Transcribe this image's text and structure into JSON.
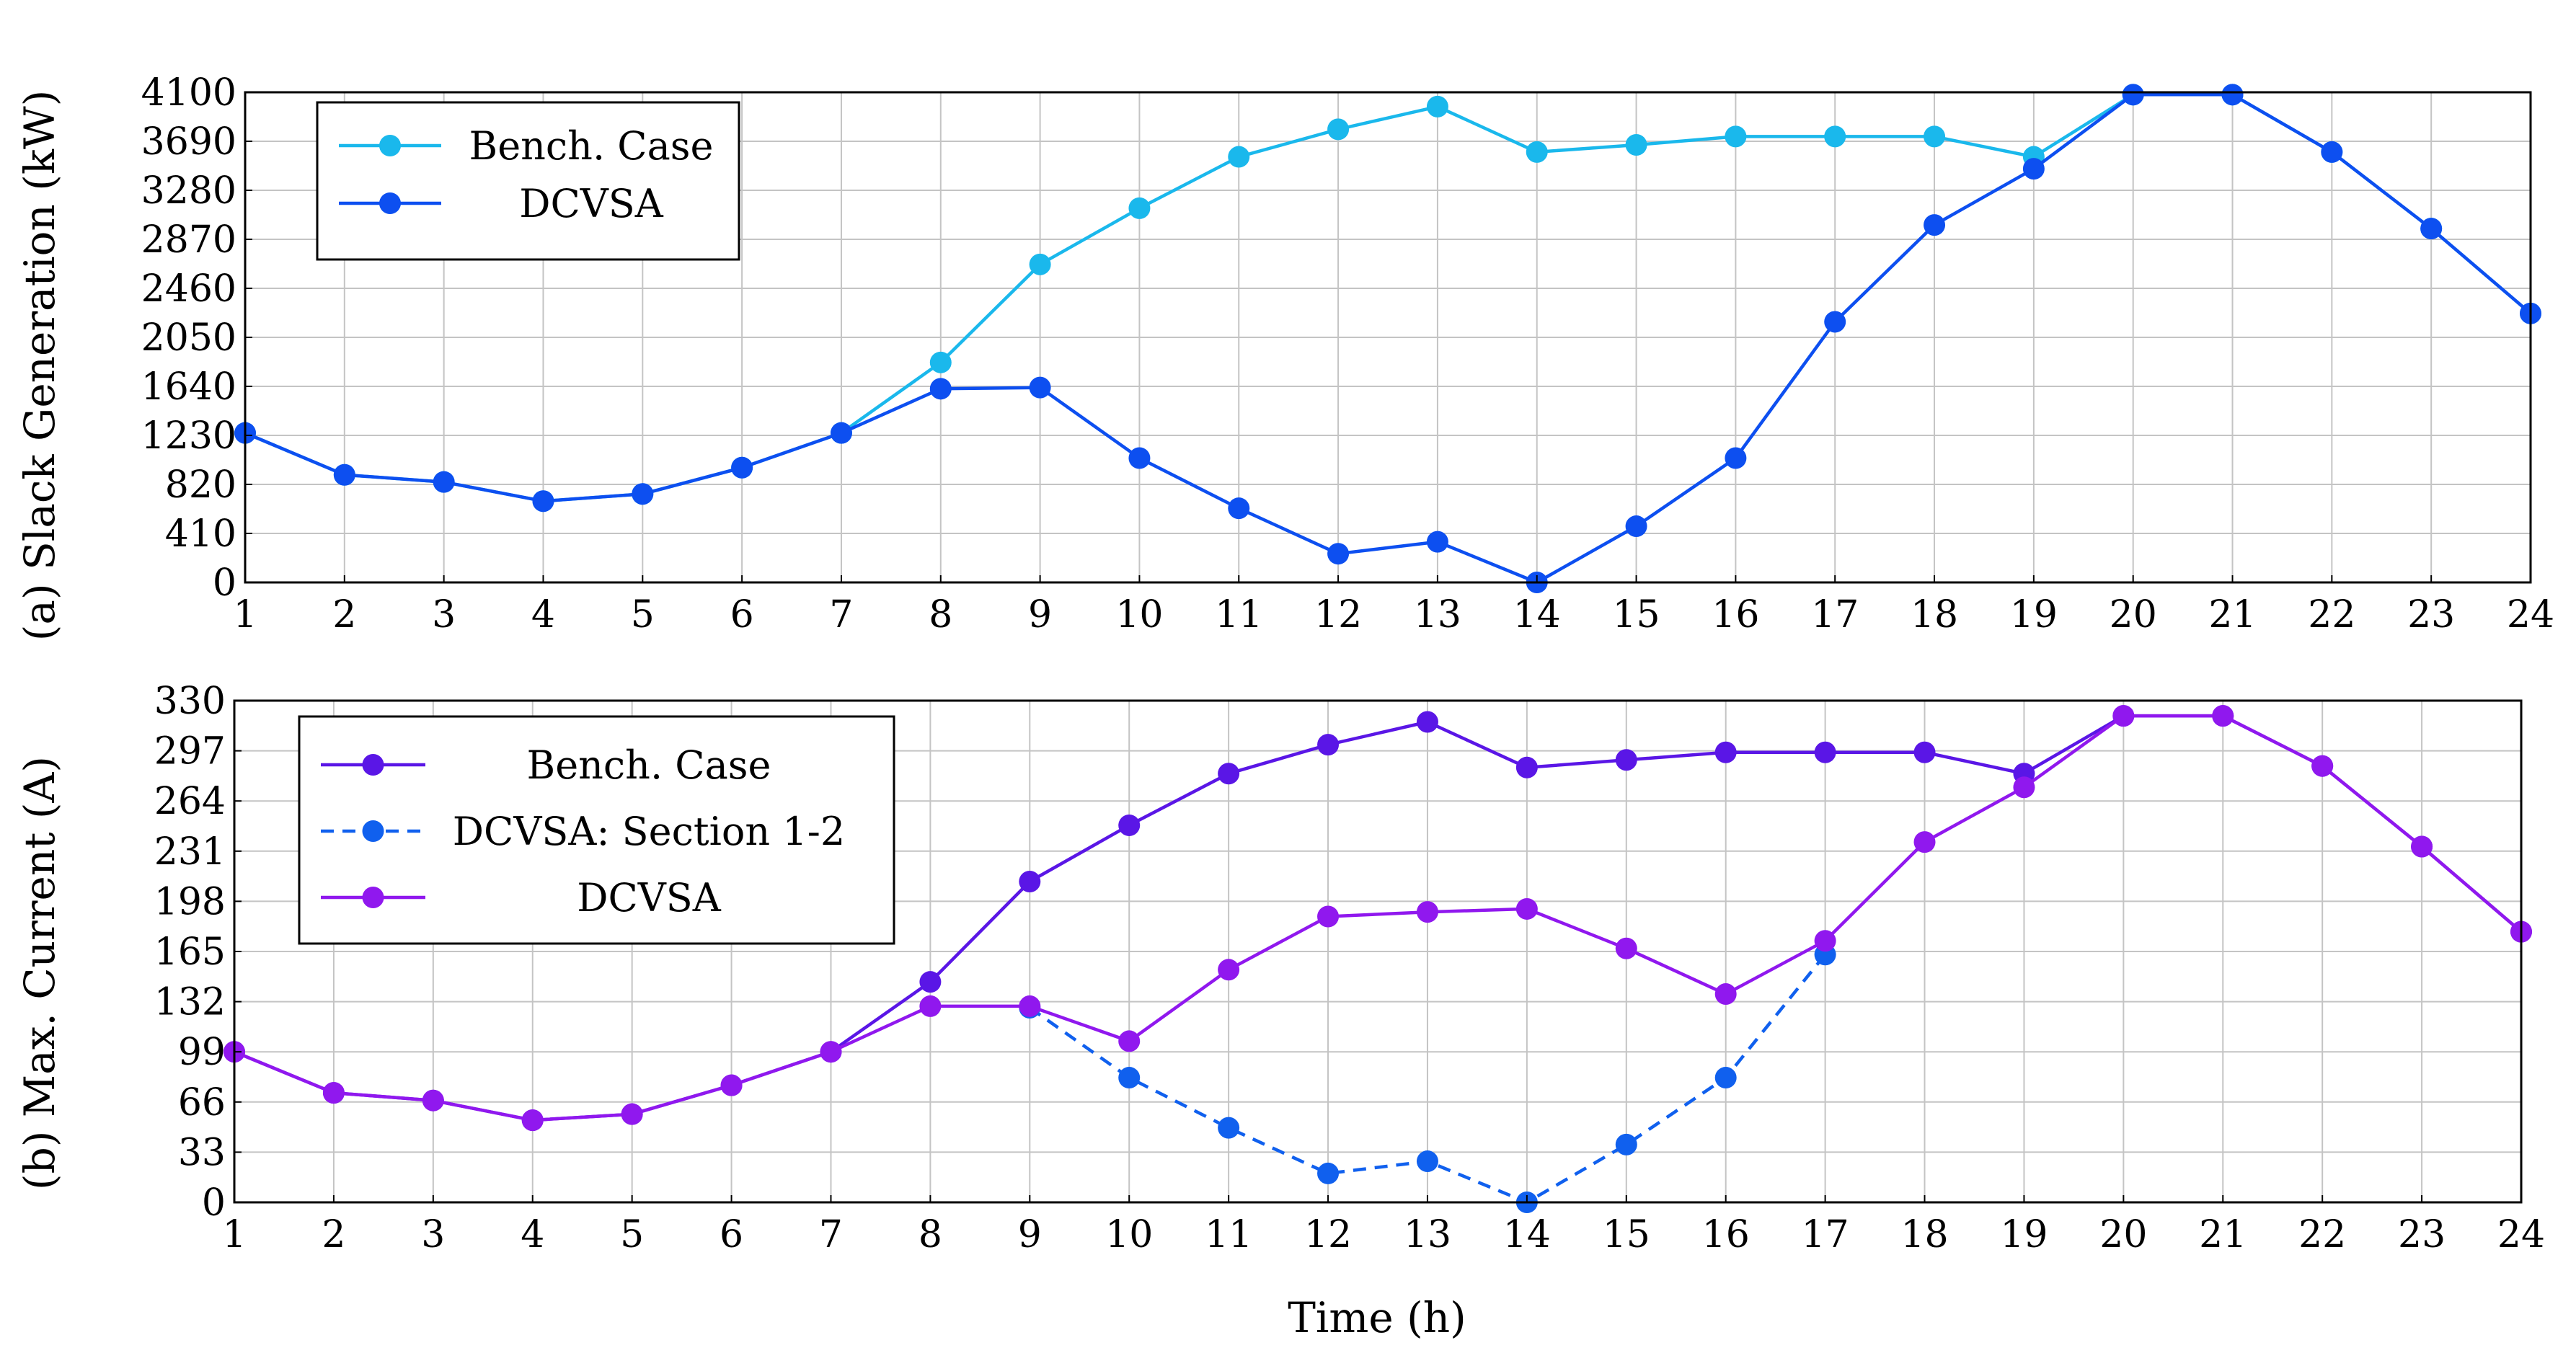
{
  "chart_data": [
    {
      "type": "line",
      "panel": "a",
      "ylabel": "(a) Slack Generation (kW)",
      "xlabel": "",
      "x": [
        1,
        2,
        3,
        4,
        5,
        6,
        7,
        8,
        9,
        10,
        11,
        12,
        13,
        14,
        15,
        16,
        17,
        18,
        19,
        20,
        21,
        22,
        23,
        24
      ],
      "xlim": [
        1,
        24
      ],
      "ylim": [
        0,
        4100
      ],
      "yticks": [
        0,
        410,
        820,
        1230,
        1640,
        2050,
        2460,
        2870,
        3280,
        3690,
        4100
      ],
      "grid": true,
      "legend_position": "top-left",
      "series": [
        {
          "name": "Bench. Case",
          "color": "#1ab8ec",
          "dash": "solid",
          "values": [
            1250,
            900,
            840,
            680,
            740,
            960,
            1250,
            1840,
            2660,
            3130,
            3560,
            3790,
            3980,
            3600,
            3660,
            3730,
            3730,
            3730,
            3560,
            4080,
            4080,
            3600,
            2960,
            2250
          ]
        },
        {
          "name": "DCVSA",
          "color": "#0d4ff0",
          "dash": "solid",
          "values": [
            1250,
            900,
            840,
            680,
            740,
            960,
            1250,
            1620,
            1630,
            1040,
            620,
            240,
            340,
            0,
            470,
            1040,
            2180,
            2990,
            3460,
            4080,
            4080,
            3600,
            2960,
            2250
          ]
        }
      ]
    },
    {
      "type": "line",
      "panel": "b",
      "ylabel": "(b) Max. Current (A)",
      "xlabel": "Time (h)",
      "x": [
        1,
        2,
        3,
        4,
        5,
        6,
        7,
        8,
        9,
        10,
        11,
        12,
        13,
        14,
        15,
        16,
        17,
        18,
        19,
        20,
        21,
        22,
        23,
        24
      ],
      "xlim": [
        1,
        24
      ],
      "ylim": [
        0,
        330
      ],
      "yticks": [
        0,
        33,
        66,
        99,
        132,
        165,
        198,
        231,
        264,
        297,
        330
      ],
      "grid": true,
      "legend_position": "top-left",
      "series": [
        {
          "name": "Bench. Case",
          "color": "#5a16e6",
          "dash": "solid",
          "values": [
            99,
            72,
            67,
            54,
            58,
            77,
            99,
            145,
            211,
            248,
            282,
            301,
            316,
            286,
            291,
            296,
            296,
            296,
            282,
            320,
            320,
            287,
            234,
            178
          ]
        },
        {
          "name": "DCVSA: Section 1-2",
          "color": "#1060ee",
          "dash": "dashed",
          "values": [
            null,
            null,
            null,
            null,
            null,
            null,
            null,
            null,
            128,
            82,
            49,
            19,
            27,
            0,
            38,
            82,
            163,
            null,
            null,
            null,
            null,
            null,
            null,
            null
          ]
        },
        {
          "name": "DCVSA",
          "color": "#9018ee",
          "dash": "solid",
          "values": [
            99,
            72,
            67,
            54,
            58,
            77,
            99,
            129,
            129,
            106,
            153,
            188,
            191,
            193,
            167,
            137,
            172,
            237,
            273,
            320,
            320,
            287,
            234,
            178
          ]
        }
      ]
    }
  ]
}
